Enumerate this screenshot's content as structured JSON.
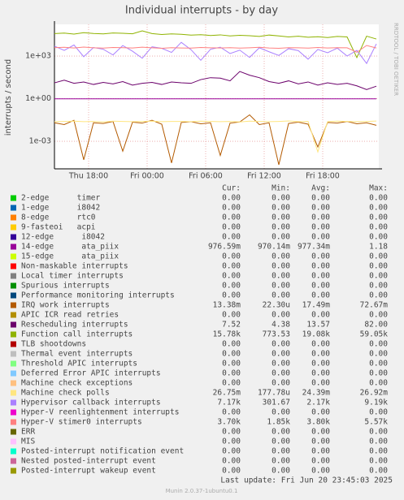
{
  "chart_data": {
    "type": "line",
    "title": "Individual interrupts - by day",
    "y_label": "interrupts / second",
    "watermark": "RRDTOOL / TOBI OETIKER",
    "last_update": "Last update: Fri Jun 20 23:45:03 2025",
    "footer": "Munin 2.0.37-1ubuntu0.1",
    "log_scale": true,
    "grid": true,
    "ylim": [
      1.15e-05,
      170000
    ],
    "yticks": [
      {
        "value": 1000,
        "label": "1e+03"
      },
      {
        "value": 1,
        "label": "1e+00"
      },
      {
        "value": 0.001,
        "label": "1e-03"
      }
    ],
    "xlim": [
      14.5,
      47.75
    ],
    "xticks": [
      {
        "value": 18,
        "label": "Thu 18:00"
      },
      {
        "value": 24,
        "label": "Fri 00:00"
      },
      {
        "value": 30,
        "label": "Fri 06:00"
      },
      {
        "value": 36,
        "label": "Fri 12:00"
      },
      {
        "value": 42,
        "label": "Fri 18:00"
      }
    ],
    "x": [
      14.5,
      15.5,
      16.5,
      17.5,
      18.5,
      19.5,
      20.5,
      21.5,
      22.5,
      23.5,
      24.5,
      25.5,
      26.5,
      27.5,
      28.5,
      29.5,
      30.5,
      31.5,
      32.5,
      33.5,
      34.5,
      35.5,
      36.5,
      37.5,
      38.5,
      39.5,
      40.5,
      41.5,
      42.5,
      43.5,
      44.5,
      45.5,
      46.5,
      47.5
    ],
    "legend_columns": [
      "Cur:",
      "Min:",
      "Avg:",
      "Max:"
    ],
    "series": [
      {
        "name": "2-edge      timer",
        "color": "#00cc00",
        "stats": [
          "0.00",
          "0.00",
          "0.00",
          "0.00"
        ]
      },
      {
        "name": "1-edge      i8042",
        "color": "#0066b3",
        "stats": [
          "0.00",
          "0.00",
          "0.00",
          "0.00"
        ]
      },
      {
        "name": "8-edge      rtc0",
        "color": "#ff8000",
        "stats": [
          "0.00",
          "0.00",
          "0.00",
          "0.00"
        ]
      },
      {
        "name": "9-fasteoi   acpi",
        "color": "#ffcc00",
        "stats": [
          "0.00",
          "0.00",
          "0.00",
          "0.00"
        ]
      },
      {
        "name": "12-edge      i8042",
        "color": "#330099",
        "stats": [
          "0.00",
          "0.00",
          "0.00",
          "0.00"
        ]
      },
      {
        "name": "14-edge      ata_piix",
        "color": "#990099",
        "stats": [
          "976.59m",
          "970.14m",
          "977.34m",
          "1.18"
        ],
        "values": [
          0.977,
          0.977,
          0.977,
          0.977,
          0.977,
          0.977,
          0.977,
          0.977,
          0.977,
          0.977,
          0.977,
          0.977,
          0.977,
          0.977,
          0.977,
          0.977,
          0.977,
          0.977,
          0.977,
          0.977,
          0.977,
          0.977,
          0.977,
          0.977,
          0.977,
          0.977,
          0.977,
          0.977,
          0.977,
          0.977,
          0.977,
          0.977,
          0.977,
          0.97659
        ]
      },
      {
        "name": "15-edge      ata_piix",
        "color": "#ccff00",
        "stats": [
          "0.00",
          "0.00",
          "0.00",
          "0.00"
        ]
      },
      {
        "name": "Non-maskable interrupts",
        "color": "#ff0000",
        "stats": [
          "0.00",
          "0.00",
          "0.00",
          "0.00"
        ]
      },
      {
        "name": "Local timer interrupts",
        "color": "#808080",
        "stats": [
          "0.00",
          "0.00",
          "0.00",
          "0.00"
        ]
      },
      {
        "name": "Spurious interrupts",
        "color": "#008f00",
        "stats": [
          "0.00",
          "0.00",
          "0.00",
          "0.00"
        ]
      },
      {
        "name": "Performance monitoring interrupts",
        "color": "#00487d",
        "stats": [
          "0.00",
          "0.00",
          "0.00",
          "0.00"
        ]
      },
      {
        "name": "IRQ work interrupts",
        "color": "#b35a00",
        "stats": [
          "13.38m",
          "22.30u",
          "17.49m",
          "72.67m"
        ],
        "values": [
          0.02,
          0.015,
          0.03,
          5e-05,
          0.02,
          0.018,
          0.025,
          0.0002,
          0.022,
          0.019,
          0.03,
          0.016,
          3e-05,
          0.021,
          0.024,
          0.017,
          0.02,
          0.0001,
          0.019,
          0.023,
          0.07267,
          0.015,
          0.02,
          2.23e-05,
          0.018,
          0.022,
          0.016,
          0.0004,
          0.021,
          0.019,
          0.025,
          0.017,
          0.02,
          0.01338
        ]
      },
      {
        "name": "APIC ICR read retries",
        "color": "#b38f00",
        "stats": [
          "0.00",
          "0.00",
          "0.00",
          "0.00"
        ]
      },
      {
        "name": "Rescheduling interrupts",
        "color": "#6b006b",
        "stats": [
          "7.52",
          "4.38",
          "13.57",
          "82.00"
        ],
        "values": [
          13,
          20,
          12,
          15,
          10,
          14,
          11,
          16,
          9,
          12,
          14,
          10,
          15,
          13,
          12,
          22,
          30,
          28,
          18,
          82,
          45,
          30,
          16,
          12,
          18,
          11,
          15,
          9,
          13,
          10,
          12,
          8,
          4.38,
          7.52
        ]
      },
      {
        "name": "Function call interrupts",
        "color": "#8fb300",
        "stats": [
          "15.78k",
          "773.53",
          "19.08k",
          "59.05k"
        ],
        "values": [
          38000,
          41000,
          35000,
          44000,
          39000,
          36000,
          42000,
          40000,
          37000,
          59050,
          38000,
          33000,
          36000,
          34000,
          30000,
          32000,
          28000,
          31000,
          26000,
          29000,
          27000,
          24000,
          30000,
          26000,
          22000,
          25000,
          21000,
          23000,
          20000,
          24000,
          22000,
          773.53,
          25000,
          15780
        ]
      },
      {
        "name": "TLB shootdowns",
        "color": "#b30000",
        "stats": [
          "0.00",
          "0.00",
          "0.00",
          "0.00"
        ]
      },
      {
        "name": "Thermal event interrupts",
        "color": "#bebebe",
        "stats": [
          "0.00",
          "0.00",
          "0.00",
          "0.00"
        ]
      },
      {
        "name": "Threshold APIC interrupts",
        "color": "#80ff80",
        "stats": [
          "0.00",
          "0.00",
          "0.00",
          "0.00"
        ]
      },
      {
        "name": "Deferred Error APIC interrupts",
        "color": "#80c9ff",
        "stats": [
          "0.00",
          "0.00",
          "0.00",
          "0.00"
        ]
      },
      {
        "name": "Machine check exceptions",
        "color": "#ffc080",
        "stats": [
          "0.00",
          "0.00",
          "0.00",
          "0.00"
        ]
      },
      {
        "name": "Machine check polls",
        "color": "#ffe680",
        "stats": [
          "26.75m",
          "177.78u",
          "24.39m",
          "26.92m"
        ],
        "values": [
          0.024,
          0.025,
          0.026,
          0.024,
          0.025,
          0.023,
          0.026,
          0.025,
          0.024,
          0.025,
          0.026,
          0.024,
          0.025,
          0.025,
          0.024,
          0.026,
          0.025,
          0.024,
          0.025,
          0.023,
          0.026,
          0.025,
          0.024,
          0.025,
          0.02692,
          0.024,
          0.025,
          0.00017778,
          0.024,
          0.026,
          0.025,
          0.024,
          0.025,
          0.02675
        ]
      },
      {
        "name": "Hypervisor callback interrupts",
        "color": "#aa80ff",
        "stats": [
          "7.17k",
          "301.67",
          "2.17k",
          "9.19k"
        ],
        "values": [
          5000,
          2500,
          6000,
          900,
          4000,
          3000,
          1200,
          5500,
          2200,
          700,
          4500,
          3500,
          1800,
          9190,
          2800,
          500,
          3000,
          4200,
          1500,
          2600,
          800,
          3800,
          2000,
          1100,
          3300,
          2400,
          600,
          2900,
          1700,
          3600,
          1000,
          2500,
          301.67,
          7170
        ]
      },
      {
        "name": "Hyper-V reenlightenment interrupts",
        "color": "#ee00cc",
        "stats": [
          "0.00",
          "0.00",
          "0.00",
          "0.00"
        ]
      },
      {
        "name": "Hyper-V stimer0 interrupts",
        "color": "#ff8080",
        "stats": [
          "3.70k",
          "1.85k",
          "3.80k",
          "5.57k"
        ],
        "values": [
          3900,
          4100,
          3700,
          4300,
          3800,
          3600,
          4000,
          3900,
          3700,
          4200,
          3800,
          3500,
          3900,
          3700,
          3600,
          4000,
          3800,
          3700,
          3900,
          3600,
          3800,
          4100,
          3700,
          3500,
          3900,
          3800,
          3600,
          4000,
          3700,
          3900,
          3800,
          1850,
          5570,
          3700
        ]
      },
      {
        "name": "ERR",
        "color": "#666600",
        "stats": [
          "0.00",
          "0.00",
          "0.00",
          "0.00"
        ]
      },
      {
        "name": "MIS",
        "color": "#ffbfff",
        "stats": [
          "0.00",
          "0.00",
          "0.00",
          "0.00"
        ]
      },
      {
        "name": "Posted-interrupt notification event",
        "color": "#00ffcc",
        "stats": [
          "0.00",
          "0.00",
          "0.00",
          "0.00"
        ]
      },
      {
        "name": "Nested posted-interrupt event",
        "color": "#cc6699",
        "stats": [
          "0.00",
          "0.00",
          "0.00",
          "0.00"
        ]
      },
      {
        "name": "Posted-interrupt wakeup event",
        "color": "#999900",
        "stats": [
          "0.00",
          "0.00",
          "0.00",
          "0.00"
        ]
      }
    ]
  }
}
